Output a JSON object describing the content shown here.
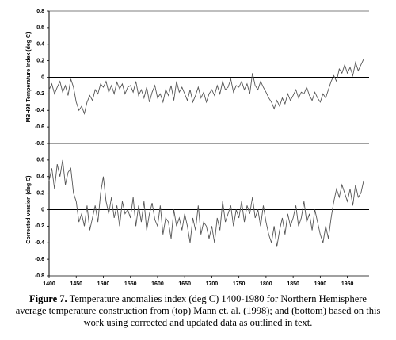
{
  "chart_data": [
    {
      "type": "line",
      "y_label": "MBH98 Temperature Index (deg C)",
      "x": [
        1400,
        1405,
        1410,
        1415,
        1420,
        1425,
        1430,
        1435,
        1440,
        1445,
        1450,
        1455,
        1460,
        1465,
        1470,
        1475,
        1480,
        1485,
        1490,
        1495,
        1500,
        1505,
        1510,
        1515,
        1520,
        1525,
        1530,
        1535,
        1540,
        1545,
        1550,
        1555,
        1560,
        1565,
        1570,
        1575,
        1580,
        1585,
        1590,
        1595,
        1600,
        1605,
        1610,
        1615,
        1620,
        1625,
        1630,
        1635,
        1640,
        1645,
        1650,
        1655,
        1660,
        1665,
        1670,
        1675,
        1680,
        1685,
        1690,
        1695,
        1700,
        1705,
        1710,
        1715,
        1720,
        1725,
        1730,
        1735,
        1740,
        1745,
        1750,
        1755,
        1760,
        1765,
        1770,
        1775,
        1780,
        1785,
        1790,
        1795,
        1800,
        1805,
        1810,
        1815,
        1820,
        1825,
        1830,
        1835,
        1840,
        1845,
        1850,
        1855,
        1860,
        1865,
        1870,
        1875,
        1880,
        1885,
        1890,
        1895,
        1900,
        1905,
        1910,
        1915,
        1920,
        1925,
        1930,
        1935,
        1940,
        1945,
        1950,
        1955,
        1960,
        1965,
        1970,
        1975,
        1980
      ],
      "series": [
        {
          "color": "#555555",
          "values": [
            -0.15,
            -0.08,
            -0.2,
            -0.12,
            -0.05,
            -0.18,
            -0.1,
            -0.22,
            -0.02,
            -0.12,
            -0.3,
            -0.4,
            -0.35,
            -0.44,
            -0.3,
            -0.22,
            -0.28,
            -0.15,
            -0.2,
            -0.08,
            -0.12,
            -0.05,
            -0.18,
            -0.1,
            -0.2,
            -0.06,
            -0.14,
            -0.08,
            -0.2,
            -0.12,
            -0.1,
            -0.18,
            -0.05,
            -0.22,
            -0.15,
            -0.25,
            -0.12,
            -0.3,
            -0.18,
            -0.1,
            -0.25,
            -0.2,
            -0.3,
            -0.15,
            -0.22,
            -0.1,
            -0.28,
            -0.05,
            -0.18,
            -0.12,
            -0.2,
            -0.28,
            -0.15,
            -0.3,
            -0.22,
            -0.12,
            -0.25,
            -0.18,
            -0.3,
            -0.2,
            -0.15,
            -0.22,
            -0.1,
            -0.2,
            -0.05,
            -0.15,
            -0.12,
            -0.02,
            -0.18,
            -0.1,
            -0.12,
            -0.05,
            -0.15,
            -0.08,
            -0.2,
            0.05,
            -0.1,
            -0.15,
            -0.05,
            -0.12,
            -0.18,
            -0.25,
            -0.3,
            -0.38,
            -0.28,
            -0.35,
            -0.25,
            -0.32,
            -0.2,
            -0.28,
            -0.22,
            -0.15,
            -0.25,
            -0.18,
            -0.2,
            -0.12,
            -0.22,
            -0.28,
            -0.18,
            -0.25,
            -0.3,
            -0.2,
            -0.25,
            -0.15,
            -0.05,
            0.02,
            -0.05,
            0.1,
            0.05,
            0.15,
            0.05,
            0.12,
            0.02,
            0.18,
            0.08,
            0.15,
            0.22
          ]
        }
      ],
      "xlim": [
        1400,
        1990
      ],
      "ylim": [
        -0.8,
        0.8
      ],
      "yticks": [
        0.8,
        0.6,
        0.4,
        0.2,
        0,
        -0.2,
        -0.4,
        -0.6,
        -0.8
      ]
    },
    {
      "type": "line",
      "y_label": "Corrected version (deg C)",
      "x": [
        1400,
        1405,
        1410,
        1415,
        1420,
        1425,
        1430,
        1435,
        1440,
        1445,
        1450,
        1455,
        1460,
        1465,
        1470,
        1475,
        1480,
        1485,
        1490,
        1495,
        1500,
        1505,
        1510,
        1515,
        1520,
        1525,
        1530,
        1535,
        1540,
        1545,
        1550,
        1555,
        1560,
        1565,
        1570,
        1575,
        1580,
        1585,
        1590,
        1595,
        1600,
        1605,
        1610,
        1615,
        1620,
        1625,
        1630,
        1635,
        1640,
        1645,
        1650,
        1655,
        1660,
        1665,
        1670,
        1675,
        1680,
        1685,
        1690,
        1695,
        1700,
        1705,
        1710,
        1715,
        1720,
        1725,
        1730,
        1735,
        1740,
        1745,
        1750,
        1755,
        1760,
        1765,
        1770,
        1775,
        1780,
        1785,
        1790,
        1795,
        1800,
        1805,
        1810,
        1815,
        1820,
        1825,
        1830,
        1835,
        1840,
        1845,
        1850,
        1855,
        1860,
        1865,
        1870,
        1875,
        1880,
        1885,
        1890,
        1895,
        1900,
        1905,
        1910,
        1915,
        1920,
        1925,
        1930,
        1935,
        1940,
        1945,
        1950,
        1955,
        1960,
        1965,
        1970,
        1975,
        1980
      ],
      "series": [
        {
          "color": "#555555",
          "values": [
            0.35,
            0.5,
            0.25,
            0.55,
            0.4,
            0.6,
            0.3,
            0.45,
            0.5,
            0.2,
            0.1,
            -0.15,
            -0.05,
            -0.2,
            0.05,
            -0.25,
            -0.1,
            0.05,
            -0.15,
            0.2,
            0.4,
            0.1,
            -0.05,
            0.15,
            -0.1,
            0.05,
            -0.2,
            0.1,
            -0.05,
            0.0,
            -0.1,
            0.15,
            -0.2,
            0.05,
            -0.15,
            0.1,
            -0.25,
            -0.05,
            0.08,
            -0.12,
            -0.2,
            0.05,
            -0.3,
            -0.1,
            -0.15,
            -0.35,
            0.0,
            -0.2,
            -0.1,
            -0.25,
            -0.05,
            -0.2,
            -0.4,
            -0.1,
            -0.25,
            0.05,
            -0.3,
            -0.15,
            -0.2,
            -0.35,
            -0.2,
            -0.4,
            -0.1,
            -0.25,
            0.1,
            -0.15,
            -0.05,
            0.05,
            -0.2,
            0.0,
            -0.1,
            0.1,
            -0.15,
            0.05,
            -0.05,
            0.15,
            -0.1,
            0.0,
            -0.2,
            0.05,
            -0.15,
            -0.3,
            -0.4,
            -0.2,
            -0.45,
            -0.25,
            -0.1,
            -0.3,
            -0.05,
            -0.2,
            -0.1,
            0.05,
            -0.2,
            -0.1,
            0.1,
            -0.15,
            -0.05,
            -0.25,
            0.0,
            -0.15,
            -0.3,
            -0.4,
            -0.2,
            -0.35,
            -0.1,
            0.1,
            0.25,
            0.15,
            0.3,
            0.2,
            0.1,
            0.25,
            0.05,
            0.3,
            0.15,
            0.2,
            0.35
          ]
        }
      ],
      "xlim": [
        1400,
        1990
      ],
      "ylim": [
        -0.8,
        0.8
      ],
      "yticks": [
        0.6,
        0.4,
        0.2,
        0,
        -0.2,
        -0.4,
        -0.6,
        -0.8
      ],
      "xticks": [
        1400,
        1450,
        1500,
        1550,
        1600,
        1650,
        1700,
        1750,
        1800,
        1850,
        1900,
        1950
      ]
    }
  ],
  "caption": {
    "label": "Figure 7.",
    "text": "Temperature anomalies index (deg C) 1400-1980 for Northern Hemisphere average temperature construction from (top) Mann et. al. (1998); and (bottom) based on this work using corrected and updated data as outlined in text."
  }
}
